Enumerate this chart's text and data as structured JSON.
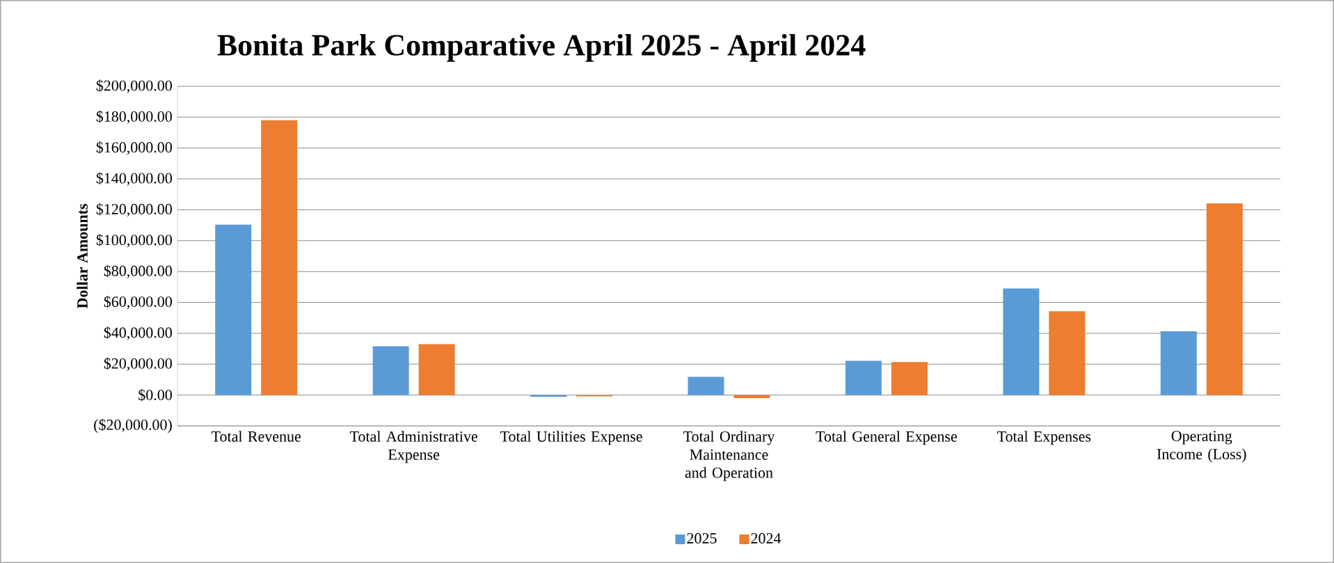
{
  "chart_data": {
    "type": "bar",
    "title": "Bonita Park Comparative April 2025 - April 2024",
    "ylabel": "Dollar Amounts",
    "categories": [
      "Total Revenue",
      "Total Administrative Expense",
      "Total Utilities Expense",
      "Total Ordinary Maintenance and Operation",
      "Total General Expense",
      "Total Expenses",
      "Operating Income (Loss)"
    ],
    "series": [
      {
        "name": "2025",
        "color": "#5b9bd5",
        "values": [
          110400,
          31600,
          -1200,
          11800,
          22200,
          69000,
          41300
        ]
      },
      {
        "name": "2024",
        "color": "#ed7d31",
        "values": [
          178000,
          33000,
          -800,
          -2000,
          21400,
          54300,
          124100
        ]
      }
    ],
    "ylim": [
      -20000,
      200000
    ],
    "yticks": [
      {
        "value": -20000,
        "label": "($20,000.00)"
      },
      {
        "value": 0,
        "label": "$0.00"
      },
      {
        "value": 20000,
        "label": "$20,000.00"
      },
      {
        "value": 40000,
        "label": "$40,000.00"
      },
      {
        "value": 60000,
        "label": "$60,000.00"
      },
      {
        "value": 80000,
        "label": "$80,000.00"
      },
      {
        "value": 100000,
        "label": "$100,000.00"
      },
      {
        "value": 120000,
        "label": "$120,000.00"
      },
      {
        "value": 140000,
        "label": "$140,000.00"
      },
      {
        "value": 160000,
        "label": "$160,000.00"
      },
      {
        "value": 180000,
        "label": "$180,000.00"
      },
      {
        "value": 200000,
        "label": "$200,000.00"
      }
    ],
    "grid": "y",
    "legend": "bottom"
  }
}
